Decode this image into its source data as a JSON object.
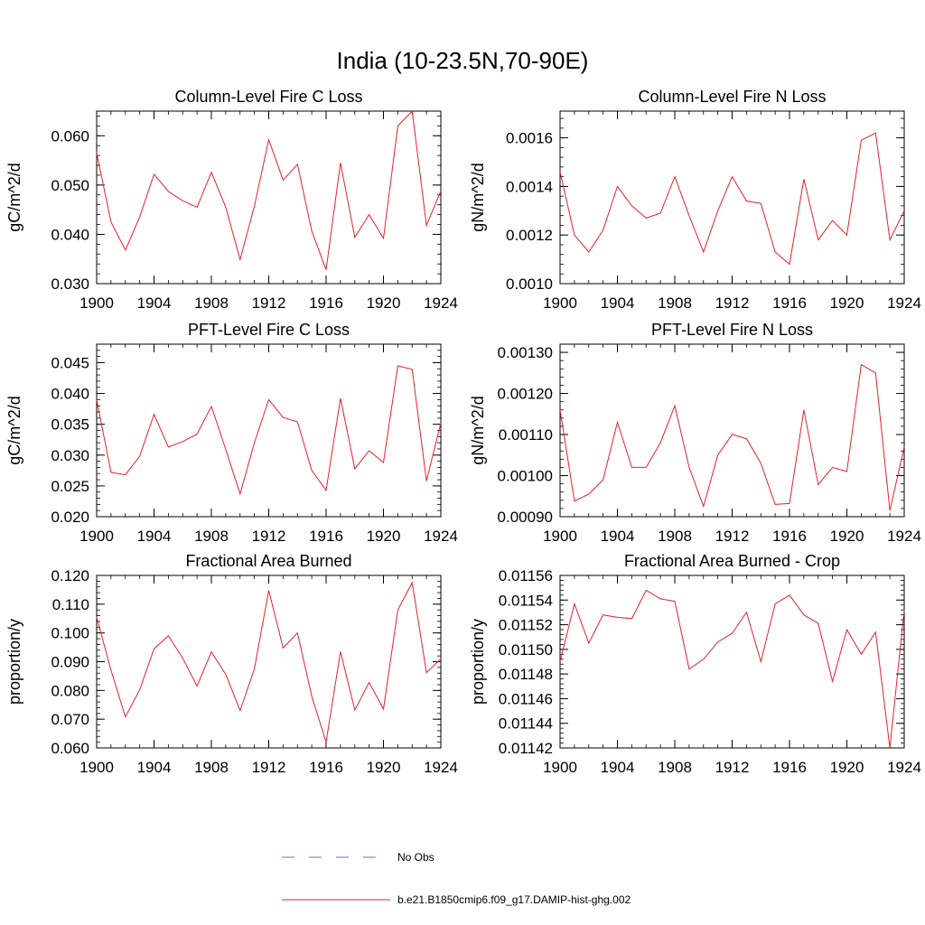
{
  "title": "India (10-23.5N,70-90E)",
  "chart_data": [
    {
      "type": "line",
      "title": "Column-Level Fire C Loss",
      "ylabel": "gC/m^2/d",
      "xlim": [
        1900,
        1924
      ],
      "ylim": [
        0.03,
        0.065
      ],
      "xticks": [
        1900,
        1904,
        1908,
        1912,
        1916,
        1920,
        1924
      ],
      "xtick_labels": [
        "1900",
        "1904",
        "1908",
        "1912",
        "1916",
        "1920",
        "1924"
      ],
      "yticks": [
        0.03,
        0.04,
        0.05,
        0.06
      ],
      "ytick_labels": [
        "0.030",
        "0.040",
        "0.050",
        "0.060"
      ],
      "x": [
        1900,
        1901,
        1902,
        1903,
        1904,
        1905,
        1906,
        1907,
        1908,
        1909,
        1910,
        1911,
        1912,
        1913,
        1914,
        1915,
        1916,
        1917,
        1918,
        1919,
        1920,
        1921,
        1922,
        1923,
        1924
      ],
      "series": [
        {
          "values": [
            0.0565,
            0.0425,
            0.0368,
            0.0435,
            0.0522,
            0.0487,
            0.0468,
            0.0455,
            0.0526,
            0.0455,
            0.0349,
            0.0457,
            0.0592,
            0.051,
            0.0542,
            0.0407,
            0.0328,
            0.0545,
            0.0394,
            0.044,
            0.0392,
            0.062,
            0.065,
            0.0418,
            0.0488
          ]
        }
      ]
    },
    {
      "type": "line",
      "title": "Column-Level Fire N Loss",
      "ylabel": "gN/m^2/d",
      "xlim": [
        1900,
        1924
      ],
      "ylim": [
        0.001,
        0.00171
      ],
      "xticks": [
        1900,
        1904,
        1908,
        1912,
        1916,
        1920,
        1924
      ],
      "xtick_labels": [
        "1900",
        "1904",
        "1908",
        "1912",
        "1916",
        "1920",
        "1924"
      ],
      "yticks": [
        0.001,
        0.0012,
        0.0014,
        0.0016
      ],
      "ytick_labels": [
        "0.0010",
        "0.0012",
        "0.0014",
        "0.0016"
      ],
      "x": [
        1900,
        1901,
        1902,
        1903,
        1904,
        1905,
        1906,
        1907,
        1908,
        1909,
        1910,
        1911,
        1912,
        1913,
        1914,
        1915,
        1916,
        1917,
        1918,
        1919,
        1920,
        1921,
        1922,
        1923,
        1924
      ],
      "series": [
        {
          "values": [
            0.00146,
            0.0012,
            0.00113,
            0.00122,
            0.0014,
            0.00132,
            0.00127,
            0.00129,
            0.00144,
            0.00128,
            0.00113,
            0.0013,
            0.00144,
            0.00134,
            0.00133,
            0.00113,
            0.00108,
            0.00143,
            0.00118,
            0.00126,
            0.0012,
            0.00159,
            0.00162,
            0.00118,
            0.0013
          ]
        }
      ]
    },
    {
      "type": "line",
      "title": "PFT-Level Fire C Loss",
      "ylabel": "gC/m^2/d",
      "xlim": [
        1900,
        1924
      ],
      "ylim": [
        0.02,
        0.048
      ],
      "xticks": [
        1900,
        1904,
        1908,
        1912,
        1916,
        1920,
        1924
      ],
      "xtick_labels": [
        "1900",
        "1904",
        "1908",
        "1912",
        "1916",
        "1920",
        "1924"
      ],
      "yticks": [
        0.02,
        0.025,
        0.03,
        0.035,
        0.04,
        0.045
      ],
      "ytick_labels": [
        "0.020",
        "0.025",
        "0.030",
        "0.035",
        "0.040",
        "0.045"
      ],
      "x": [
        1900,
        1901,
        1902,
        1903,
        1904,
        1905,
        1906,
        1907,
        1908,
        1909,
        1910,
        1911,
        1912,
        1913,
        1914,
        1915,
        1916,
        1917,
        1918,
        1919,
        1920,
        1921,
        1922,
        1923,
        1924
      ],
      "series": [
        {
          "values": [
            0.039,
            0.0272,
            0.0268,
            0.0298,
            0.0366,
            0.0313,
            0.0322,
            0.0334,
            0.0379,
            0.0309,
            0.0237,
            0.032,
            0.039,
            0.0361,
            0.0354,
            0.0275,
            0.0243,
            0.0392,
            0.0278,
            0.0307,
            0.0288,
            0.0445,
            0.0439,
            0.0258,
            0.0352
          ]
        }
      ]
    },
    {
      "type": "line",
      "title": "PFT-Level Fire N Loss",
      "ylabel": "gN/m^2/d",
      "xlim": [
        1900,
        1924
      ],
      "ylim": [
        0.0009,
        0.00132
      ],
      "xticks": [
        1900,
        1904,
        1908,
        1912,
        1916,
        1920,
        1924
      ],
      "xtick_labels": [
        "1900",
        "1904",
        "1908",
        "1912",
        "1916",
        "1920",
        "1924"
      ],
      "yticks": [
        0.0009,
        0.001,
        0.0011,
        0.0012,
        0.0013
      ],
      "ytick_labels": [
        "0.00090",
        "0.00100",
        "0.00110",
        "0.00120",
        "0.00130"
      ],
      "x": [
        1900,
        1901,
        1902,
        1903,
        1904,
        1905,
        1906,
        1907,
        1908,
        1909,
        1910,
        1911,
        1912,
        1913,
        1914,
        1915,
        1916,
        1917,
        1918,
        1919,
        1920,
        1921,
        1922,
        1923,
        1924
      ],
      "series": [
        {
          "values": [
            0.00116,
            0.000938,
            0.000955,
            0.00099,
            0.00113,
            0.00102,
            0.00102,
            0.00108,
            0.00117,
            0.00102,
            0.000925,
            0.00105,
            0.0011,
            0.00109,
            0.00103,
            0.00093,
            0.000932,
            0.00116,
            0.000978,
            0.00102,
            0.00101,
            0.00127,
            0.00125,
            0.000915,
            0.00107
          ]
        }
      ]
    },
    {
      "type": "line",
      "title": "Fractional Area Burned",
      "ylabel": "proportion/y",
      "xlim": [
        1900,
        1924
      ],
      "ylim": [
        0.06,
        0.12
      ],
      "xticks": [
        1900,
        1904,
        1908,
        1912,
        1916,
        1920,
        1924
      ],
      "xtick_labels": [
        "1900",
        "1904",
        "1908",
        "1912",
        "1916",
        "1920",
        "1924"
      ],
      "yticks": [
        0.06,
        0.07,
        0.08,
        0.09,
        0.1,
        0.11,
        0.12
      ],
      "ytick_labels": [
        "0.060",
        "0.070",
        "0.080",
        "0.090",
        "0.100",
        "0.110",
        "0.120"
      ],
      "x": [
        1900,
        1901,
        1902,
        1903,
        1904,
        1905,
        1906,
        1907,
        1908,
        1909,
        1910,
        1911,
        1912,
        1913,
        1914,
        1915,
        1916,
        1917,
        1918,
        1919,
        1920,
        1921,
        1922,
        1923,
        1924
      ],
      "series": [
        {
          "values": [
            0.1055,
            0.087,
            0.0708,
            0.0802,
            0.0945,
            0.099,
            0.0912,
            0.0815,
            0.0934,
            0.0856,
            0.073,
            0.0875,
            0.1148,
            0.0948,
            0.1,
            0.078,
            0.062,
            0.0935,
            0.0732,
            0.0828,
            0.0735,
            0.108,
            0.1175,
            0.0862,
            0.091
          ]
        }
      ]
    },
    {
      "type": "line",
      "title": "Fractional Area Burned - Crop",
      "ylabel": "proportion/y",
      "xlim": [
        1900,
        1924
      ],
      "ylim": [
        0.01142,
        0.01156
      ],
      "xticks": [
        1900,
        1904,
        1908,
        1912,
        1916,
        1920,
        1924
      ],
      "xtick_labels": [
        "1900",
        "1904",
        "1908",
        "1912",
        "1916",
        "1920",
        "1924"
      ],
      "yticks": [
        0.01142,
        0.01144,
        0.01146,
        0.01148,
        0.0115,
        0.01152,
        0.01154,
        0.01156
      ],
      "ytick_labels": [
        "0.01142",
        "0.01144",
        "0.01146",
        "0.01148",
        "0.01150",
        "0.01152",
        "0.01154",
        "0.01156"
      ],
      "x": [
        1900,
        1901,
        1902,
        1903,
        1904,
        1905,
        1906,
        1907,
        1908,
        1909,
        1910,
        1911,
        1912,
        1913,
        1914,
        1915,
        1916,
        1917,
        1918,
        1919,
        1920,
        1921,
        1922,
        1923,
        1924
      ],
      "series": [
        {
          "values": [
            0.01149,
            0.011537,
            0.011505,
            0.011528,
            0.011526,
            0.011525,
            0.011548,
            0.011541,
            0.011539,
            0.011484,
            0.011492,
            0.011506,
            0.011513,
            0.01153,
            0.01149,
            0.011537,
            0.011544,
            0.011528,
            0.011521,
            0.011474,
            0.011516,
            0.011496,
            0.011514,
            0.01142,
            0.011532
          ]
        }
      ]
    }
  ],
  "legend": [
    {
      "label": "No Obs",
      "color": "#6b6bd6",
      "style": "dashed"
    },
    {
      "label": "b.e21.B1850cmip6.f09_g17.DAMIP-hist-ghg.002",
      "color": "#e8202a",
      "style": "solid"
    }
  ],
  "colors": {
    "series": "#e8202a",
    "obs": "#6b6bd6",
    "axis": "#000000"
  }
}
